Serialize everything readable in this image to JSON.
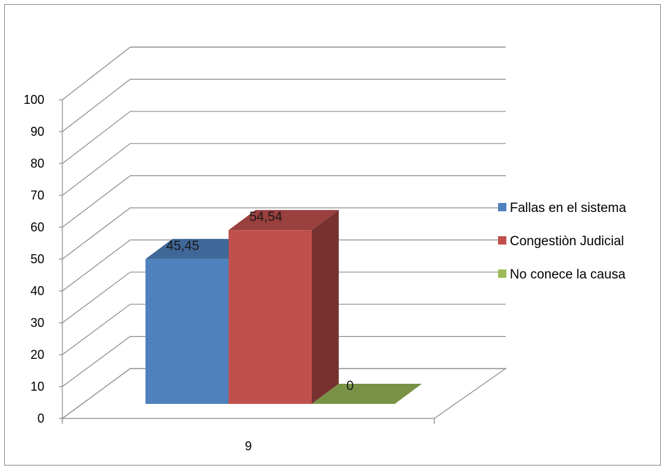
{
  "chart_data": {
    "type": "bar",
    "subtype": "3d-clustered-column",
    "categories": [
      "9"
    ],
    "series": [
      {
        "name": "Fallas en el sistema",
        "values": [
          45.45
        ],
        "color": "#4f81bd"
      },
      {
        "name": "Congestiòn Judicial",
        "values": [
          54.54
        ],
        "color": "#c0504d"
      },
      {
        "name": "No conece la causa",
        "values": [
          0
        ],
        "color": "#9bbb59"
      }
    ],
    "data_labels": [
      "45,45",
      "54,54",
      "0"
    ],
    "y_ticks": [
      "0",
      "10",
      "20",
      "30",
      "40",
      "50",
      "60",
      "70",
      "80",
      "90",
      "100"
    ],
    "ylim": [
      0,
      100
    ],
    "grid": true,
    "legend_position": "right"
  }
}
